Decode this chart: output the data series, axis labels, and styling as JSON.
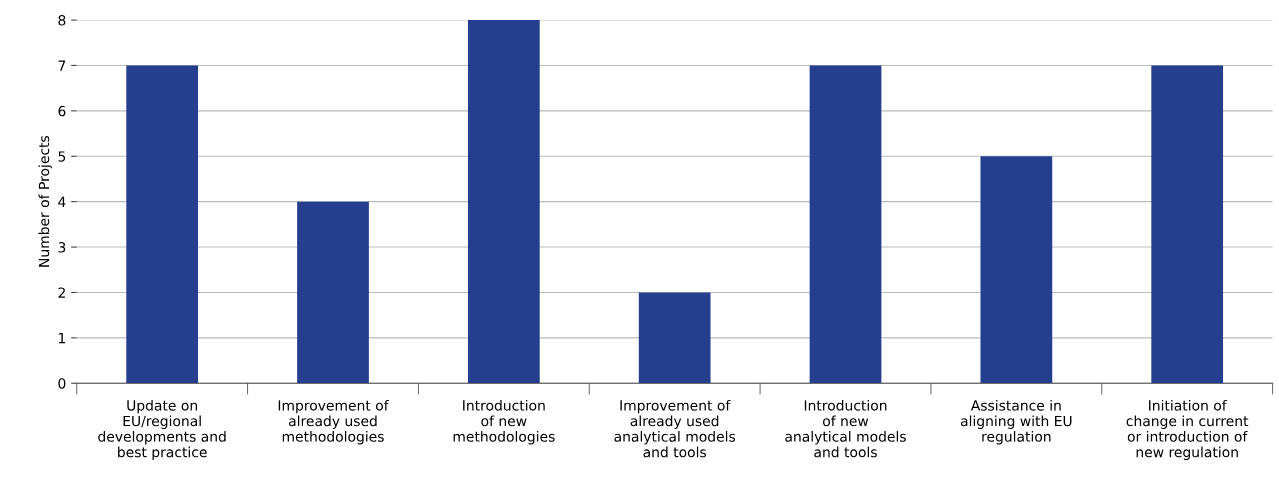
{
  "chart_data": {
    "type": "bar",
    "categories": [
      "Update on\nEU/regional\ndevelopments and\nbest practice",
      "Improvement of\nalready used\nmethodologies",
      "Introduction\nof new\nmethodologies",
      "Improvement of\nalready used\nanalytical models\nand tools",
      "Introduction\nof new\nanalytical models\nand tools",
      "Assistance in\naligning with EU\nregulation",
      "Initiation of\nchange in current\nor introduction of\nnew regulation"
    ],
    "values": [
      7,
      4,
      8,
      2,
      7,
      5,
      7
    ],
    "color": "#253f8e",
    "ylabel": "Number of Projects",
    "ylim": [
      0,
      8
    ],
    "yticks": [
      0,
      1,
      2,
      3,
      4,
      5,
      6,
      7,
      8
    ],
    "grid": "y",
    "legend": false
  }
}
